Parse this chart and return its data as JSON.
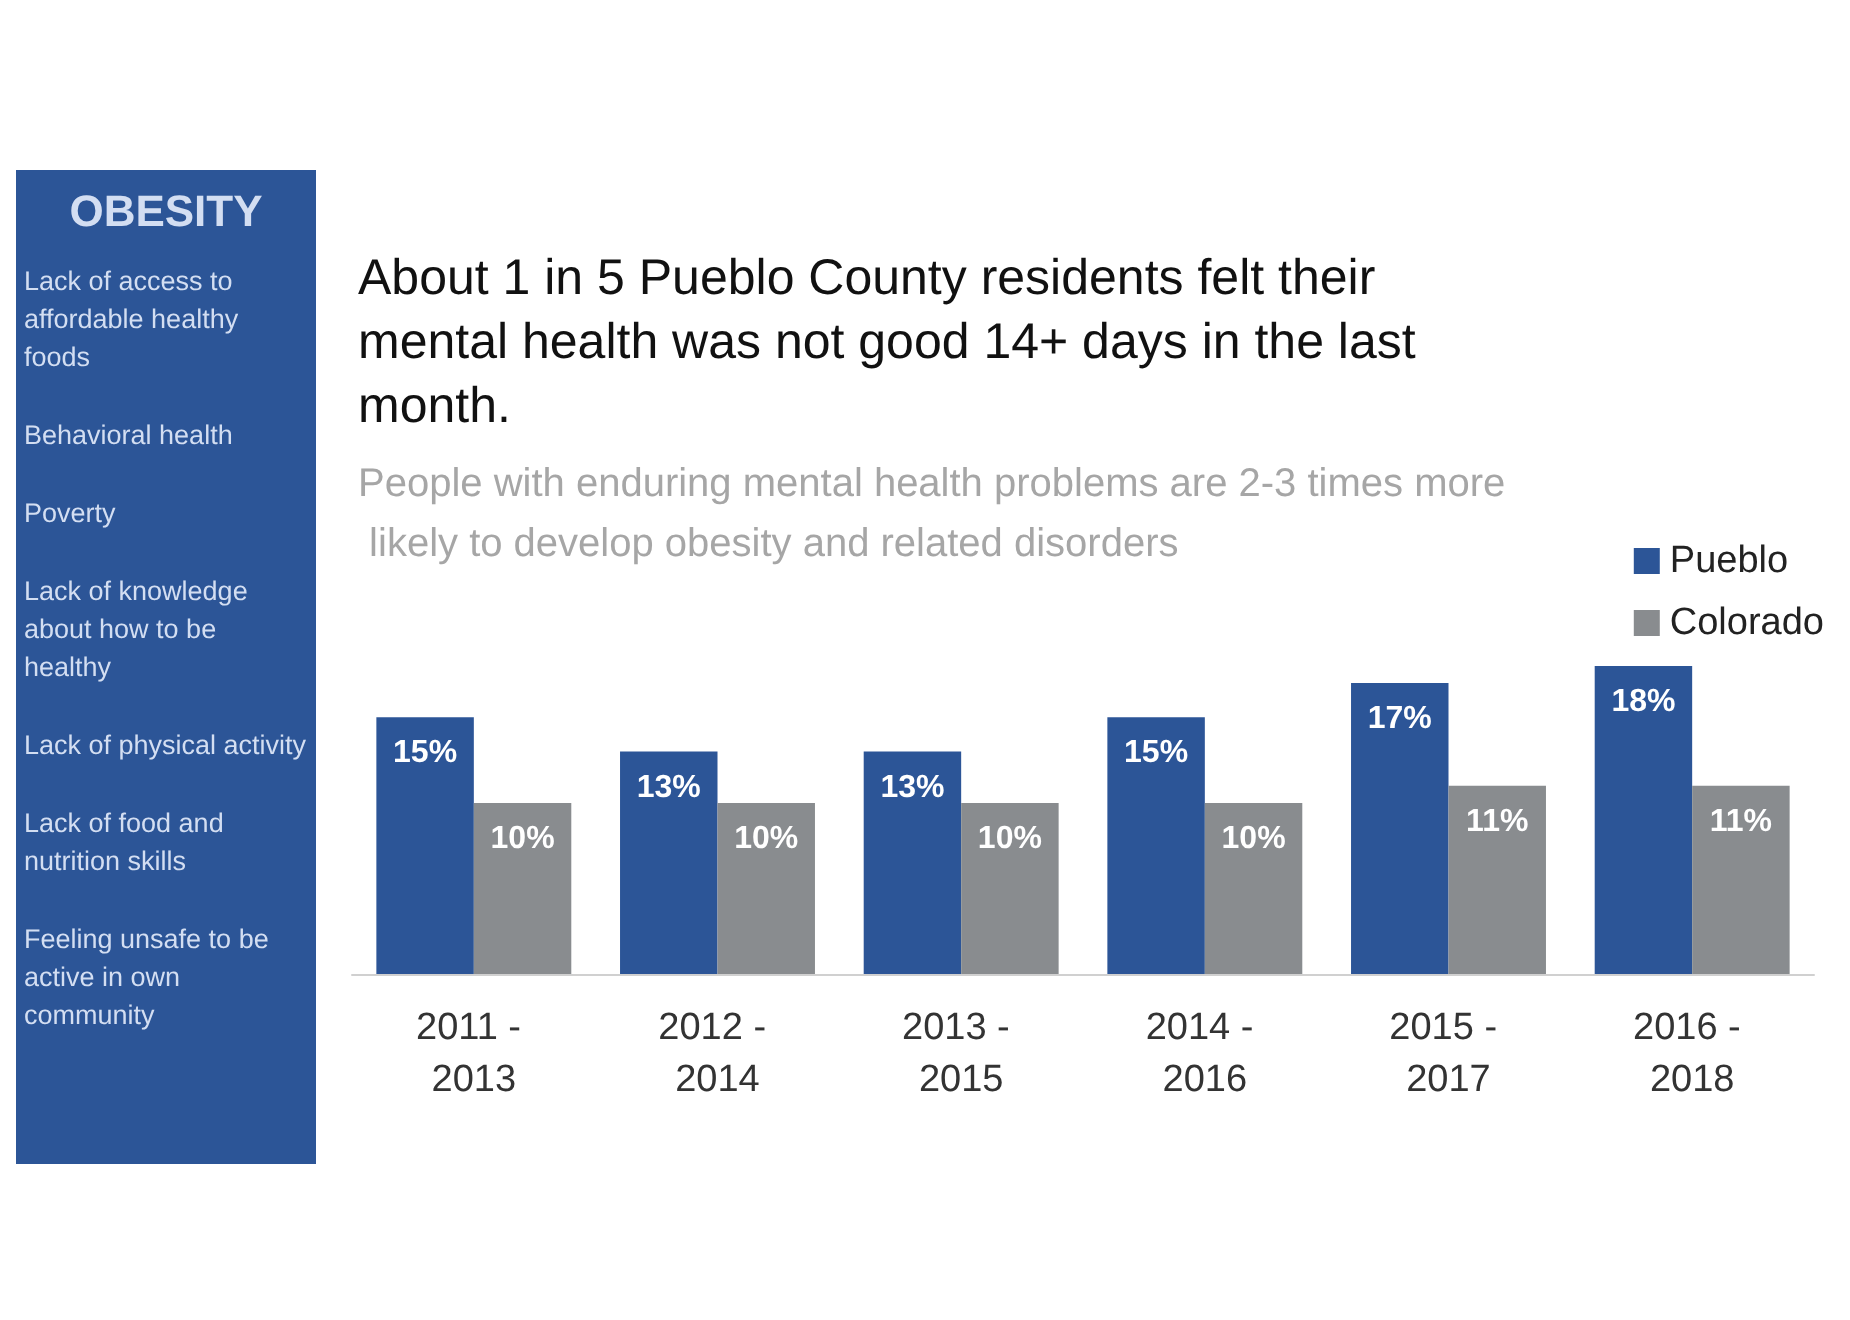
{
  "chart_data": [
    {
      "type": "other",
      "title": "OBESITY",
      "annotations": [
        "Lack of access to affordable healthy foods",
        "Behavioral health",
        "Poverty",
        "Lack of knowledge about how to be healthy",
        "Lack of physical activity",
        "Lack of food and nutrition skills",
        "Feeling unsafe to be active in own community"
      ]
    },
    {
      "type": "bar",
      "title": "About 1 in 5 Pueblo County residents felt their mental health was not good 14+ days in the last month.",
      "subtitle": "People with enduring mental health problems are 2-3 times more likely to develop obesity and related disorders",
      "categories": [
        "2011 - 2013",
        "2012 - 2014",
        "2013 - 2015",
        "2014 - 2016",
        "2015 - 2017",
        "2016 - 2018"
      ],
      "legend": "top right",
      "series": [
        {
          "name": "Pueblo",
          "color": "#2c5597",
          "values": [
            15,
            13,
            13,
            15,
            17,
            18
          ],
          "value_labels": [
            "15%",
            "13%",
            "13%",
            "15%",
            "17%",
            "18%"
          ]
        },
        {
          "name": "Colorado",
          "color": "#898c8f",
          "values": [
            10,
            10,
            10,
            10,
            11,
            11
          ],
          "value_labels": [
            "10%",
            "10%",
            "10%",
            "10%",
            "11%",
            "11%"
          ]
        }
      ]
    }
  ]
}
